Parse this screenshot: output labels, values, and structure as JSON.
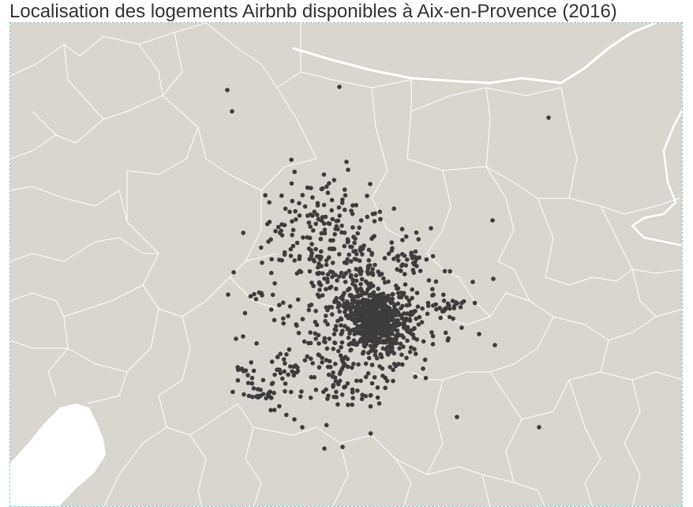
{
  "title": "Localisation des logements Airbnb disponibles à Aix-en-Provence (2016)",
  "colors": {
    "land": "#d9d5cf",
    "boundary": "#ffffff",
    "marker": "#3d3d3d",
    "water": "#ffffff",
    "frame_border": "#7fd1c7",
    "title": "#333333"
  },
  "map": {
    "marker_shape": "circle",
    "marker_count_visible": "~1500 (dense cluster)",
    "layers": [
      "commune-boundaries",
      "major-road",
      "water-body",
      "listing-points"
    ]
  }
}
